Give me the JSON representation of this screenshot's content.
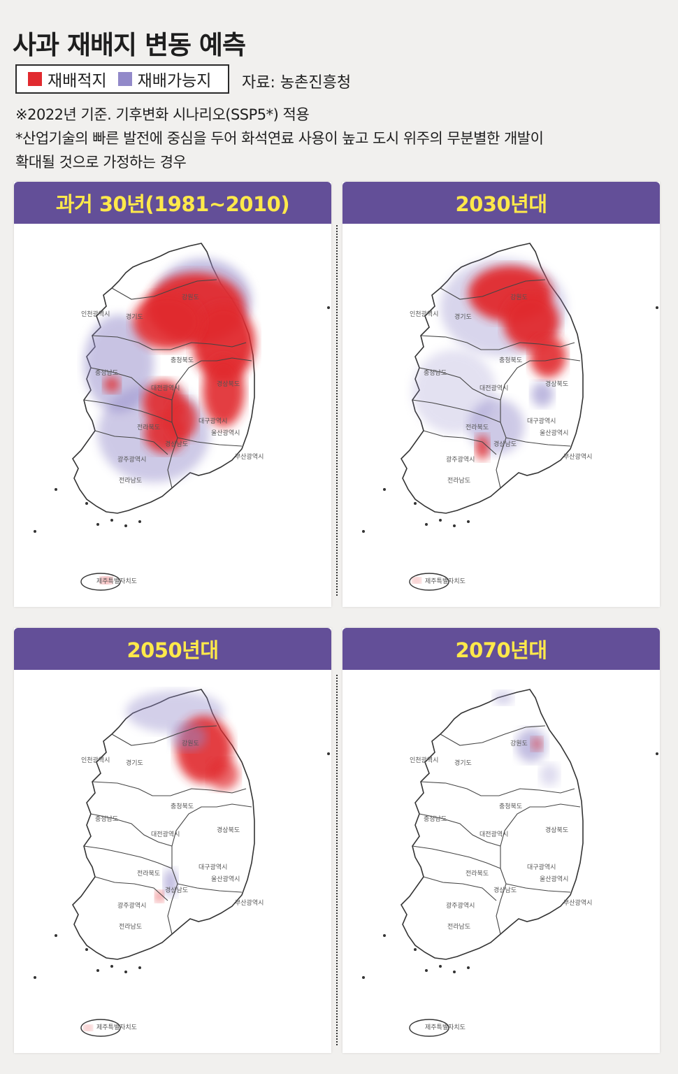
{
  "title": "사과 재배지 변동 예측",
  "legend": {
    "items": [
      {
        "label": "재배적지",
        "color": "#e12a2f"
      },
      {
        "label": "재배가능지",
        "color": "#9289c9"
      }
    ]
  },
  "source": "자료: 농촌진흥청",
  "notes": [
    "※2022년 기준. 기후변화 시나리오(SSP5*) 적용",
    "*산업기술의 빠른 발전에 중심을 두어 화석연료 사용이 높고 도시 위주의 무분별한 개발이",
    " 확대될 것으로 가정하는 경우"
  ],
  "panels": [
    {
      "title": "과거 30년(1981~2010)"
    },
    {
      "title": "2030년대"
    },
    {
      "title": "2050년대"
    },
    {
      "title": "2070년대"
    }
  ],
  "map_labels": {
    "gangwon": "강원도",
    "incheon": "인천광역시",
    "gyeonggi": "경기도",
    "chungbuk": "충청북도",
    "chungnam": "충청남도",
    "daejeon": "대전광역시",
    "gyeongbuk": "경상북도",
    "daegu": "대구광역시",
    "jeonbuk": "전라북도",
    "gyeongnam": "경상남도",
    "ulsan": "울산광역시",
    "gwangju": "광주광역시",
    "busan": "부산광역시",
    "jeonnam": "전라남도",
    "jeju": "제주특별자치도"
  }
}
